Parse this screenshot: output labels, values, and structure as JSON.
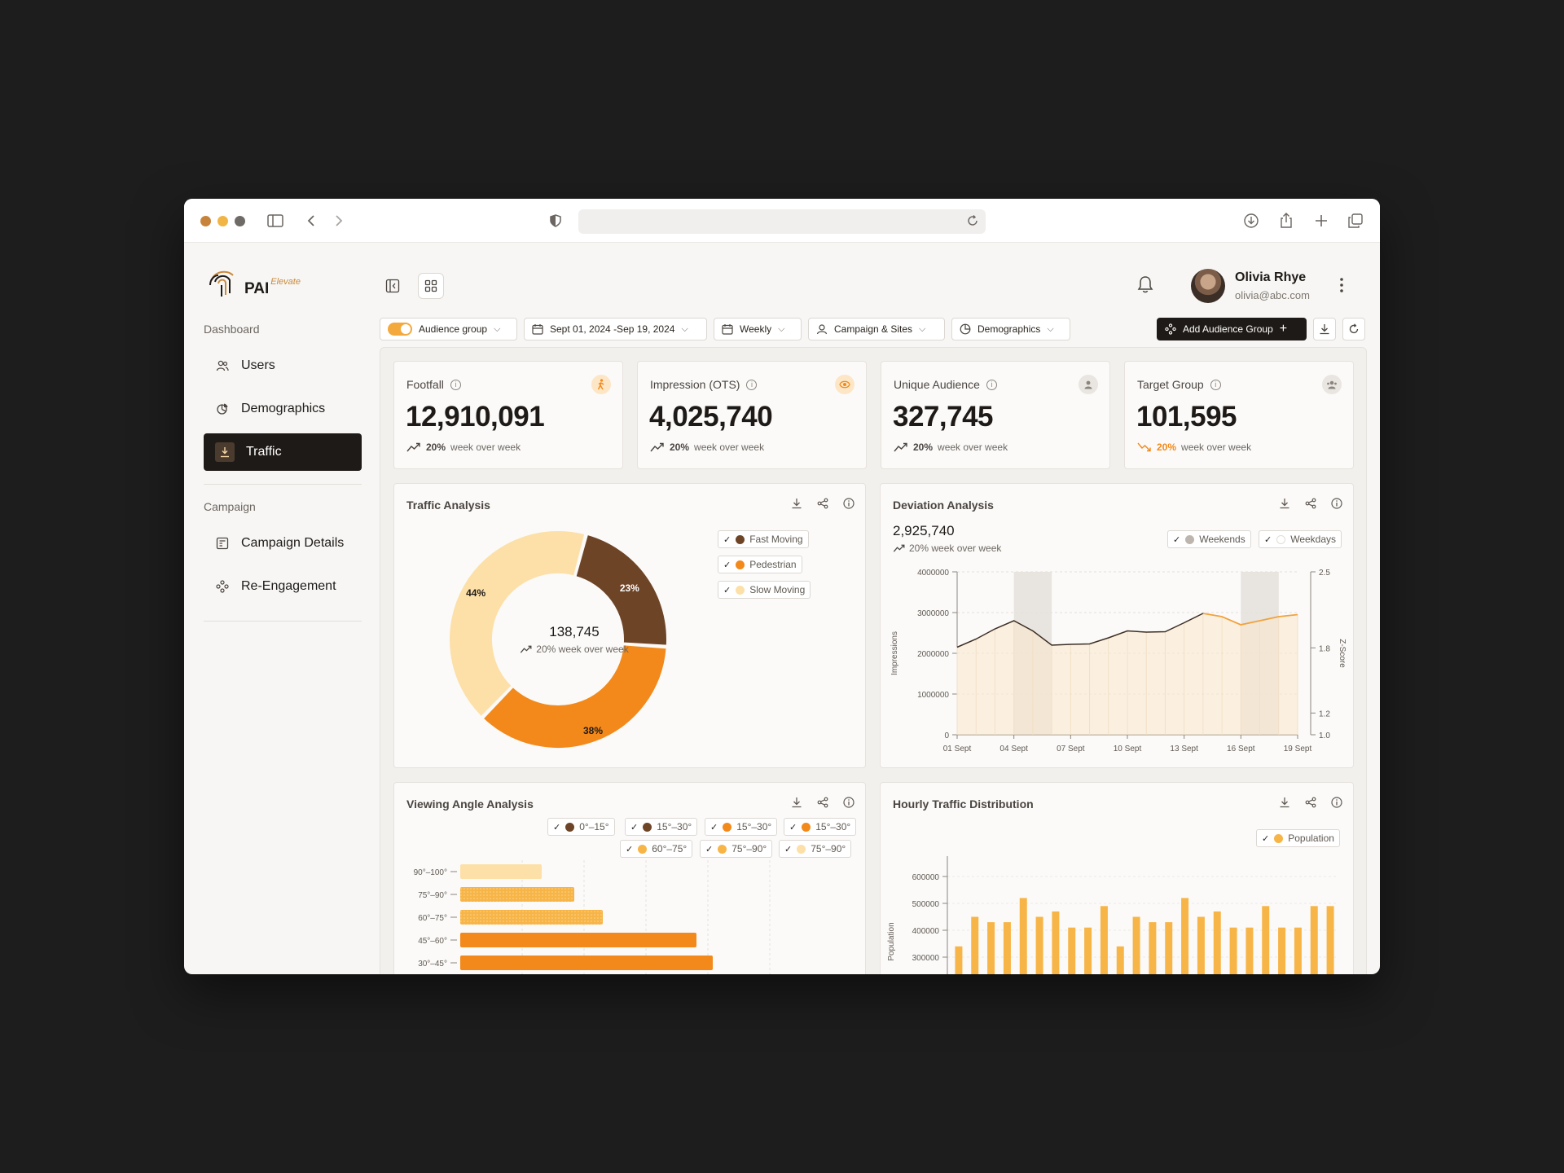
{
  "app": {
    "logo_text": "PAI",
    "logo_super": "Elevate"
  },
  "sidebar": {
    "dashboard_label": "Dashboard",
    "dashboard_items": [
      {
        "label": "Users",
        "icon": "users-icon"
      },
      {
        "label": "Demographics",
        "icon": "demographics-icon"
      },
      {
        "label": "Traffic",
        "icon": "traffic-icon",
        "active": true
      }
    ],
    "campaign_label": "Campaign",
    "campaign_items": [
      {
        "label": "Campaign Details",
        "icon": "campaign-details-icon"
      },
      {
        "label": "Re-Engagement",
        "icon": "re-engagement-icon"
      }
    ]
  },
  "user": {
    "name": "Olivia Rhye",
    "email": "olivia@abc.com"
  },
  "filters": {
    "audience_group": "Audience group",
    "date_range": "Sept 01, 2024 -Sep 19, 2024",
    "frequency": "Weekly",
    "campaign_sites": "Campaign & Sites",
    "demographics": "Demographics",
    "add_audience_group": "Add Audience Group"
  },
  "kpis": [
    {
      "label": "Footfall",
      "value": "12,910,091",
      "trend_pct": "20%",
      "trend_text": "week over week",
      "direction": "up",
      "badge_color": "#f2891a"
    },
    {
      "label": "Impression (OTS)",
      "value": "4,025,740",
      "trend_pct": "20%",
      "trend_text": "week over week",
      "direction": "up",
      "badge_color": "#f2891a"
    },
    {
      "label": "Unique Audience",
      "value": "327,745",
      "trend_pct": "20%",
      "trend_text": "week over week",
      "direction": "up",
      "badge_color": "#9a938b"
    },
    {
      "label": "Target Group",
      "value": "101,595",
      "trend_pct": "20%",
      "trend_text": "week over week",
      "direction": "down",
      "badge_color": "#9a938b"
    }
  ],
  "traffic_analysis": {
    "title": "Traffic Analysis",
    "center_value": "138,745",
    "center_trend": "20% week over week",
    "legend": [
      {
        "label": "Fast Moving",
        "color": "#6e4427"
      },
      {
        "label": "Pedestrian",
        "color": "#f2891a"
      },
      {
        "label": "Slow Moving",
        "color": "#fde0a8"
      }
    ]
  },
  "deviation_analysis": {
    "title": "Deviation Analysis",
    "value": "2,925,740",
    "trend": "20% week over week",
    "legend": [
      {
        "label": "Weekends",
        "color": "#bdb6ae"
      },
      {
        "label": "Weekdays",
        "color": "#ffffff"
      }
    ]
  },
  "viewing_angle": {
    "title": "Viewing Angle Analysis",
    "legend": [
      {
        "label": "0°–15°",
        "color": "#6e4427"
      },
      {
        "label": "15°–30°",
        "color": "#6e4427"
      },
      {
        "label": "15°–30°",
        "color": "#f2891a"
      },
      {
        "label": "15°–30°",
        "color": "#f2891a"
      },
      {
        "label": "60°–75°",
        "color": "#f7b548"
      },
      {
        "label": "75°–90°",
        "color": "#f7b548"
      },
      {
        "label": "75°–90°",
        "color": "#fde0a8"
      }
    ]
  },
  "hourly_traffic": {
    "title": "Hourly Traffic Distribution",
    "legend": [
      {
        "label": "Population",
        "color": "#f7b548"
      }
    ]
  },
  "chart_data": [
    {
      "type": "pie",
      "title": "Traffic Analysis",
      "categories": [
        "Fast Moving",
        "Pedestrian",
        "Slow Moving"
      ],
      "values": [
        23,
        38,
        44
      ],
      "labels": [
        "23%",
        "38%",
        "44%"
      ],
      "colors": [
        "#6e4427",
        "#f2891a",
        "#fde0a8"
      ]
    },
    {
      "type": "line",
      "title": "Deviation Analysis",
      "x": [
        "01 Sept",
        "02 Sept",
        "03 Sept",
        "04 Sept",
        "05 Sept",
        "06 Sept",
        "07 Sept",
        "08 Sept",
        "09 Sept",
        "10 Sept",
        "11 Sept",
        "12 Sept",
        "13 Sept",
        "14 Sept",
        "15 Sept",
        "16 Sept",
        "17 Sept",
        "18 Sept",
        "19 Sept"
      ],
      "x_ticks": [
        "01 Sept",
        "04 Sept",
        "07 Sept",
        "10 Sept",
        "13 Sept",
        "16 Sept",
        "19 Sept"
      ],
      "series": [
        {
          "values": [
            2150000,
            2350000,
            2600000,
            2800000,
            2550000,
            2200000,
            2220000,
            2230000,
            2380000,
            2550000,
            2520000,
            2530000,
            2750000,
            2980000,
            2900000,
            2700000,
            2800000,
            2900000,
            2950000
          ]
        }
      ],
      "ylabel": "Impressions",
      "ylabel_right": "Z-Score",
      "ylim": [
        0,
        4000000
      ],
      "yticks": [
        "0",
        "1000000",
        "2000000",
        "3000000",
        "4000000"
      ],
      "ylim_right": [
        1.0,
        2.5
      ],
      "yticks_right": [
        "1.0",
        "1.2",
        "1.8",
        "2.5"
      ],
      "highlight_ranges": [
        [
          "04 Sept",
          "06 Sept"
        ],
        [
          "16 Sept",
          "18 Sept"
        ]
      ],
      "grid": true
    },
    {
      "type": "bar",
      "title": "Viewing Angle Analysis",
      "orientation": "horizontal",
      "categories": [
        "90°–100°",
        "75°–90°",
        "60°–75°",
        "45°–60°",
        "30°–45°"
      ],
      "values": [
        10,
        14,
        17.5,
        29,
        31
      ],
      "colors": [
        "#fde0a8",
        "#f7b548",
        "#f7b548",
        "#f2891a",
        "#f2891a"
      ],
      "grid": true
    },
    {
      "type": "bar",
      "title": "Hourly Traffic Distribution",
      "series": [
        {
          "name": "Population",
          "values": [
            340000,
            450000,
            430000,
            430000,
            520000,
            450000,
            470000,
            410000,
            410000,
            490000,
            340000,
            450000,
            430000,
            430000,
            520000,
            450000,
            470000,
            410000,
            410000,
            490000,
            410000,
            410000,
            490000,
            490000
          ]
        }
      ],
      "ylabel": "Population",
      "yticks": [
        "300000",
        "400000",
        "500000",
        "600000"
      ],
      "grid": true
    }
  ]
}
